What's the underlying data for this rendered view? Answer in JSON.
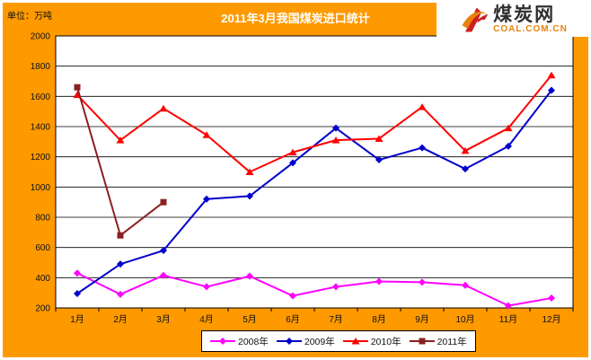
{
  "header": {
    "unit_label": "单位：万吨",
    "title": "2011年3月我国煤炭进口统计"
  },
  "logo": {
    "name": "煤炭网",
    "domain": "COAL.COM.CN",
    "icon": "coal-net-swoosh-icon",
    "accent_red": "#CC1F1F",
    "accent_orange": "#E8820C"
  },
  "colors": {
    "panel_background": "#FF9900",
    "plot_background": "#FFFFFF",
    "grid_line": "#000000",
    "axis_text": "#111111",
    "title_text": "#FFFFFF"
  },
  "chart_data": {
    "type": "line",
    "title": "2011年3月我国煤炭进口统计",
    "unit": "万吨",
    "categories": [
      "1月",
      "2月",
      "3月",
      "4月",
      "5月",
      "6月",
      "7月",
      "8月",
      "9月",
      "10月",
      "11月",
      "12月"
    ],
    "series": [
      {
        "name": "2008年",
        "color": "#FF00FF",
        "marker": "diamond",
        "values": [
          430,
          290,
          415,
          340,
          410,
          280,
          340,
          375,
          370,
          350,
          215,
          265
        ]
      },
      {
        "name": "2009年",
        "color": "#0000CC",
        "marker": "diamond",
        "values": [
          295,
          490,
          580,
          920,
          940,
          1160,
          1390,
          1180,
          1260,
          1120,
          1270,
          1640
        ]
      },
      {
        "name": "2010年",
        "color": "#FF0000",
        "marker": "triangle",
        "values": [
          1610,
          1310,
          1520,
          1345,
          1100,
          1230,
          1310,
          1320,
          1530,
          1240,
          1390,
          1740
        ]
      },
      {
        "name": "2011年",
        "color": "#8B2020",
        "marker": "square",
        "values": [
          1660,
          680,
          900
        ]
      }
    ],
    "ylim": [
      200,
      2000
    ],
    "ytick_step": 200,
    "grid": true,
    "legend_position": "bottom"
  }
}
